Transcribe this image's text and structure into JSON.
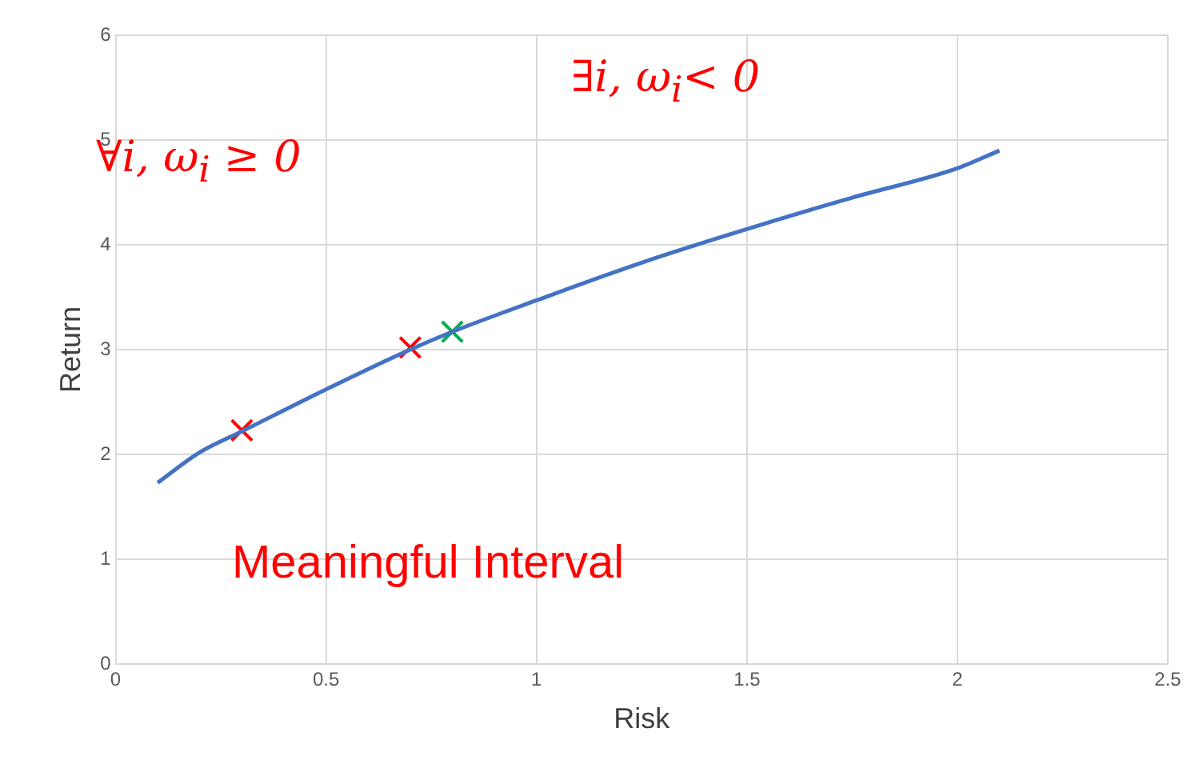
{
  "chart_data": {
    "type": "line",
    "xlabel": "Risk",
    "ylabel": "Return",
    "xlim": [
      0,
      2.5
    ],
    "xticks": [
      0,
      0.5,
      1,
      1.5,
      2,
      2.5
    ],
    "ylim": [
      0,
      6
    ],
    "yticks": [
      0,
      1,
      2,
      3,
      4,
      5,
      6
    ],
    "grid": true,
    "series": [
      {
        "color": "#4472c4",
        "marker": "none",
        "x": [
          0.1,
          0.2,
          0.3,
          0.5,
          0.7,
          0.8,
          1.0,
          1.25,
          1.5,
          1.75,
          2.0,
          2.1
        ],
        "values": [
          1.73,
          2.02,
          2.22,
          2.62,
          3.0,
          3.17,
          3.47,
          3.83,
          4.15,
          4.45,
          4.73,
          4.9
        ]
      },
      {
        "type": "scatter",
        "marker": "cross",
        "colors": [
          "#ff0000",
          "#ff0000",
          "#00b050"
        ],
        "x": [
          0.3,
          0.7,
          0.8
        ],
        "values": [
          2.23,
          3.02,
          3.17
        ]
      }
    ],
    "annotations": [
      "∀i, ω$_{i}$ ≥ 0",
      "∃i, ω$_{i}$< 0",
      "Meaningful Interval"
    ]
  }
}
